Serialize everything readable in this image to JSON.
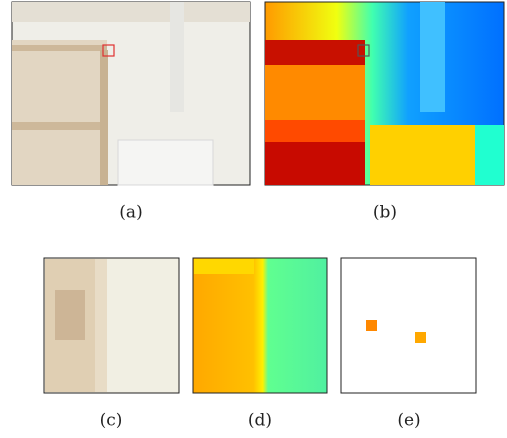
{
  "panels": [
    {
      "caption": "(a)"
    },
    {
      "caption": "(b)"
    },
    {
      "caption": "(c)"
    },
    {
      "caption": "(d)"
    },
    {
      "caption": "(e)"
    }
  ]
}
